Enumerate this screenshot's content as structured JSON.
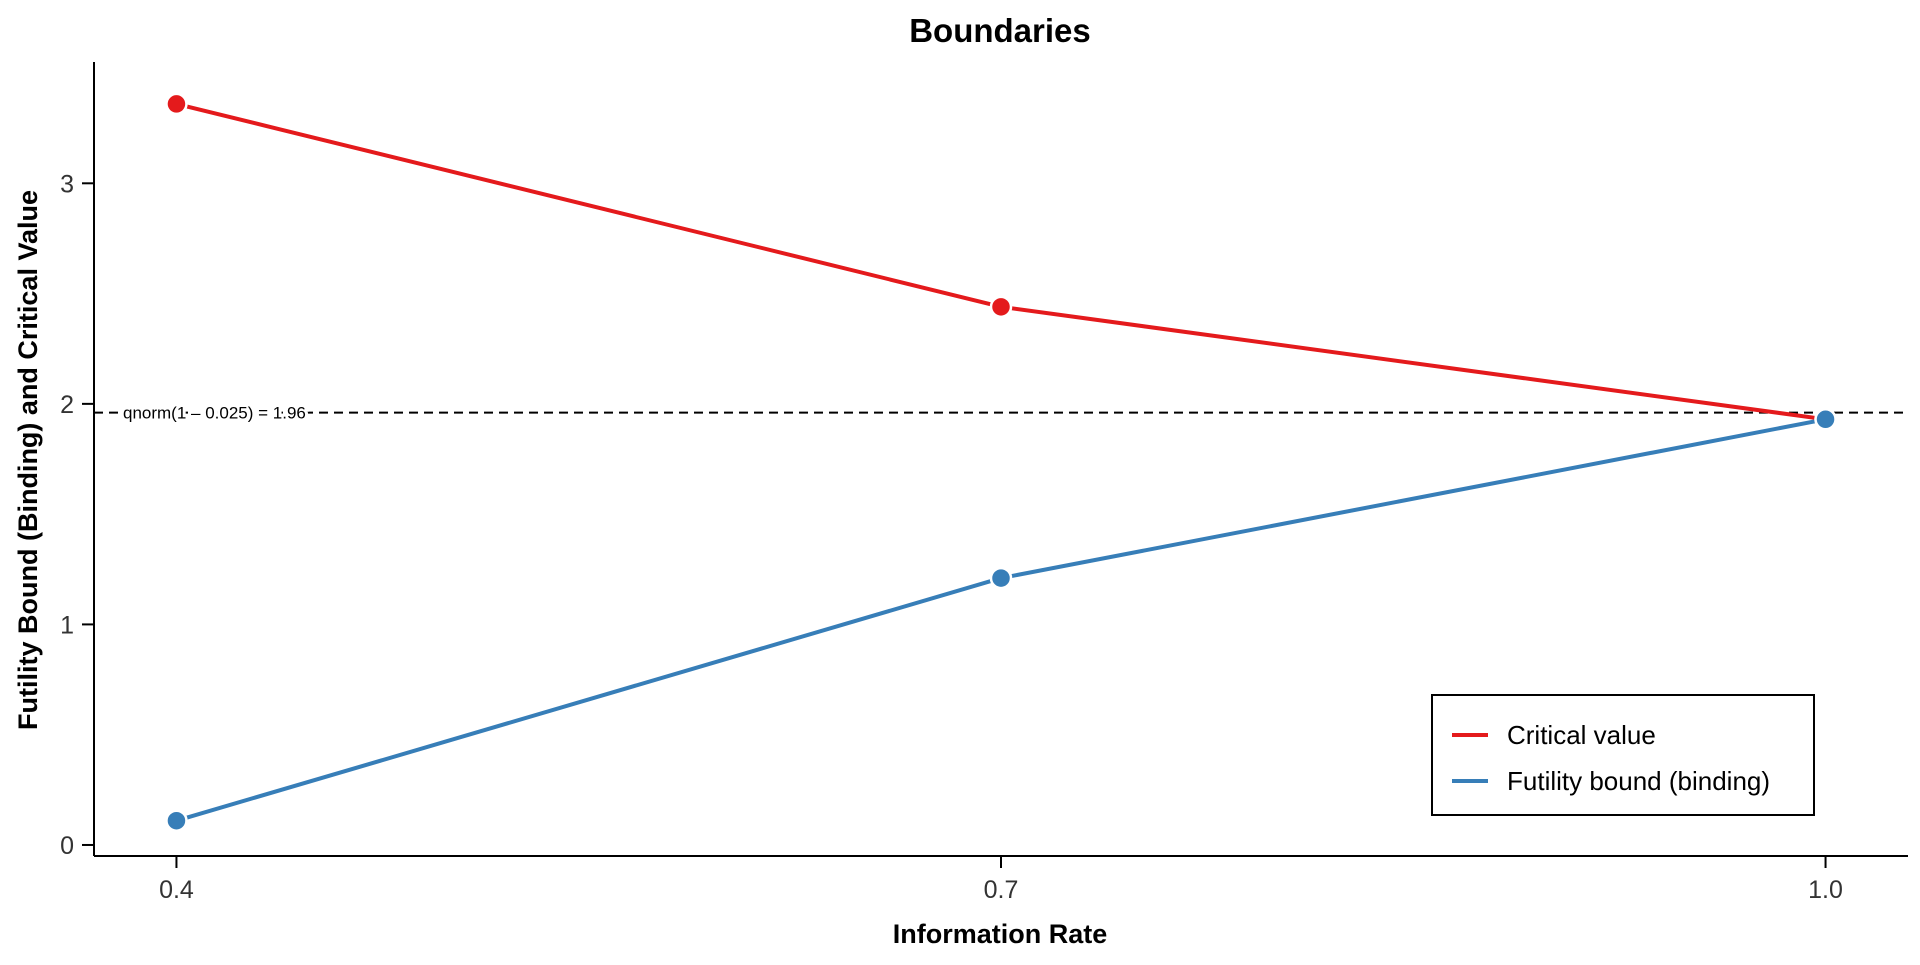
{
  "chart_data": {
    "type": "line",
    "title": "Boundaries",
    "xlabel": "Information Rate",
    "ylabel": "Futility Bound (Binding) and Critical Value",
    "x": [
      0.4,
      0.7,
      1.0
    ],
    "x_tick_labels": [
      "0.4",
      "0.7",
      "1.0"
    ],
    "xlim": [
      0.37,
      1.03
    ],
    "y_ticks": [
      0,
      1,
      2,
      3
    ],
    "y_tick_labels": [
      "0",
      "1",
      "2",
      "3"
    ],
    "ylim": [
      -0.05,
      3.55
    ],
    "grid": false,
    "legend_position": "bottom-right",
    "series": [
      {
        "name": "Critical value",
        "color": "#e41a1c",
        "values": [
          3.36,
          2.44,
          1.93
        ]
      },
      {
        "name": "Futility bound (binding)",
        "color": "#377eb8",
        "values": [
          0.11,
          1.21,
          1.93
        ]
      }
    ],
    "reference_line": {
      "y": 1.96,
      "style": "dashed",
      "color": "#000000",
      "label": "qnorm(1 – 0.025) = 1.96"
    }
  }
}
